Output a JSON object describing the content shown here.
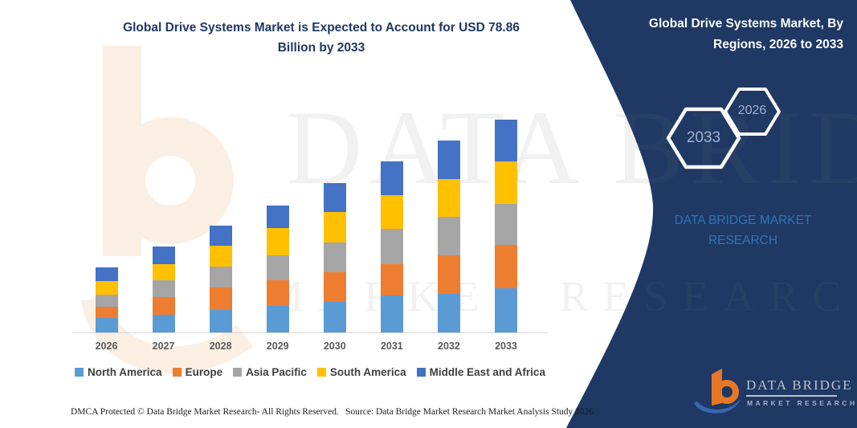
{
  "title": {
    "lines": [
      "Global Drive Systems Market is Expected to Account for USD 78.86",
      "Billion by 2033"
    ]
  },
  "panel": {
    "bg_color": "#1f3864",
    "title_lines": [
      "Global Drive Systems Market, By",
      "Regions, 2026 to 2033"
    ],
    "hexagons": [
      {
        "label": "2033"
      },
      {
        "label": "2026"
      }
    ],
    "brand_lines": [
      "DATA BRIDGE MARKET",
      "RESEARCH"
    ],
    "brand_color": "#2e75b6",
    "logo": {
      "name": "DATA BRIDGE",
      "subtitle": "MARKET RESEARCH",
      "icon": "data-bridge-b-swoosh-icon",
      "orange": "#e87725",
      "blue": "#3a66ae"
    }
  },
  "chart_data": {
    "type": "bar",
    "stacked": true,
    "title": "Global Drive Systems Market is Expected to Account for USD 78.86 Billion by 2033",
    "xlabel": "",
    "ylabel": "",
    "value_unit": "USD Billion",
    "grid": false,
    "legend_position": "bottom",
    "ylim": [
      0,
      80
    ],
    "categories": [
      "2026",
      "2027",
      "2028",
      "2029",
      "2030",
      "2031",
      "2032",
      "2033"
    ],
    "series": [
      {
        "name": "North America",
        "color": "#5b9bd5",
        "values": [
          5.3,
          6.5,
          8.3,
          9.8,
          11.3,
          13.7,
          14.3,
          16.5
        ]
      },
      {
        "name": "Europe",
        "color": "#ed7d31",
        "values": [
          4.3,
          6.5,
          8.3,
          9.5,
          11.0,
          11.6,
          14.3,
          15.9
        ]
      },
      {
        "name": "Asia Pacific",
        "color": "#a5a5a5",
        "values": [
          4.4,
          6.3,
          7.7,
          9.2,
          11.0,
          13.1,
          14.3,
          15.1
        ]
      },
      {
        "name": "South America",
        "color": "#ffc000",
        "values": [
          5.0,
          6.0,
          7.7,
          10.1,
          11.3,
          12.5,
          14.0,
          15.9
        ]
      },
      {
        "name": "Middle East and Africa",
        "color": "#4472c4",
        "values": [
          5.0,
          6.5,
          7.7,
          8.3,
          10.7,
          12.5,
          14.3,
          15.46
        ]
      }
    ],
    "totals": [
      24.0,
      31.8,
      39.7,
      46.9,
      55.3,
      63.4,
      71.2,
      78.86
    ],
    "highlight_value": "USD 78.86 Billion by 2033"
  },
  "watermark": {
    "line1": "DATA BRIDGE",
    "line2": "MARKET RESEARCH"
  },
  "footer": {
    "dmca": "DMCA Protected © Data Bridge Market Research-  All Rights Reserved.",
    "source": "Source: Data Bridge Market Research  Market Analysis Study 2026"
  }
}
